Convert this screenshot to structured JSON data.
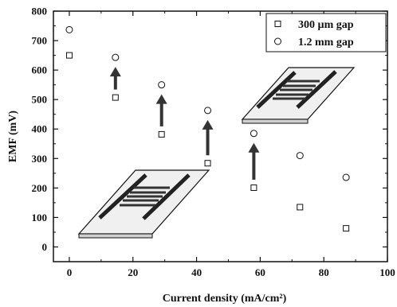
{
  "chart_data": {
    "type": "scatter",
    "title": "",
    "xlabel": "Current density (mA/cm²)",
    "ylabel": "EMF (mV)",
    "xlim": [
      -5,
      100
    ],
    "ylim": [
      -50,
      800
    ],
    "xticks": [
      "0",
      "20",
      "40",
      "60",
      "80",
      "100"
    ],
    "yticks": [
      "0",
      "100",
      "200",
      "300",
      "400",
      "500",
      "600",
      "700",
      "800"
    ],
    "legend_position": "top-right",
    "series": [
      {
        "name": "300 µm gap",
        "marker": "square",
        "x": [
          0,
          14.5,
          29,
          43.5,
          58,
          72.5,
          87
        ],
        "y": [
          650,
          507,
          382,
          284,
          201,
          135,
          63
        ]
      },
      {
        "name": "1.2 mm gap",
        "marker": "circle",
        "x": [
          0,
          14.5,
          29,
          43.5,
          58,
          72.5,
          87
        ],
        "y": [
          737,
          643,
          550,
          463,
          385,
          310,
          236
        ]
      }
    ],
    "annotations": [
      {
        "type": "arrow-up",
        "x": 14.5
      },
      {
        "type": "arrow-up",
        "x": 29
      },
      {
        "type": "arrow-up",
        "x": 43.5
      },
      {
        "type": "arrow-up",
        "x": 58
      }
    ]
  }
}
